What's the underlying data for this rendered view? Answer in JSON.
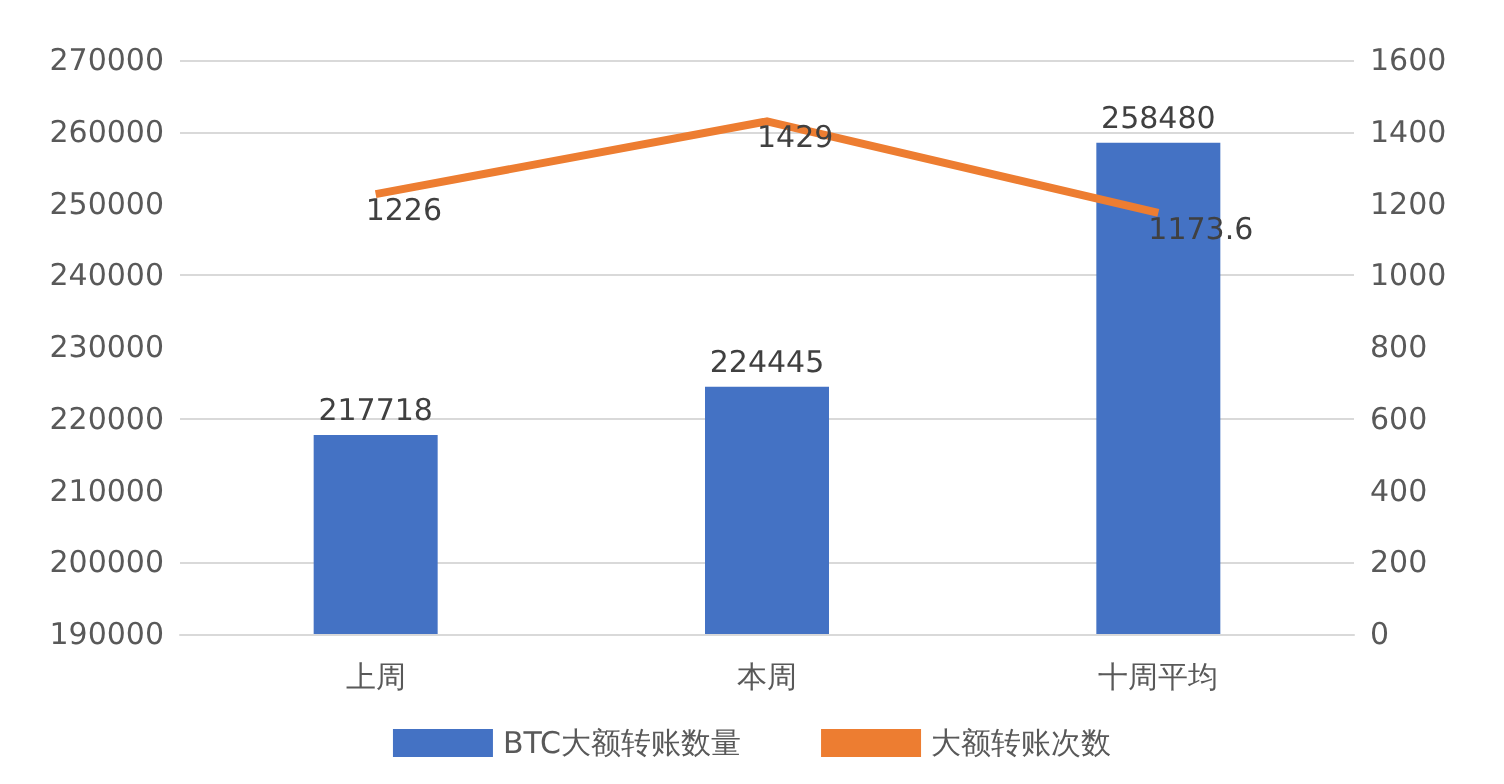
{
  "chart_data": {
    "type": "bar",
    "categories": [
      "上周",
      "本周",
      "十周平均"
    ],
    "series": [
      {
        "name": "BTC大额转账数量",
        "color": "#4472c4",
        "values": [
          217718,
          224445,
          258480
        ]
      },
      {
        "name": "大额转账次数",
        "type": "line",
        "axis": "y2",
        "color": "#ed7d31",
        "values": [
          1226,
          1429,
          1173.6
        ]
      }
    ],
    "ylim": [
      190000,
      270000
    ],
    "yticks": [
      190000,
      200000,
      210000,
      220000,
      230000,
      240000,
      250000,
      260000,
      270000
    ],
    "y2lim": [
      0,
      1600
    ],
    "y2ticks": [
      0,
      200,
      400,
      600,
      800,
      1000,
      1200,
      1400,
      1600
    ],
    "data_labels": true,
    "grid": "y",
    "legend": "bottom",
    "marker": "none"
  }
}
